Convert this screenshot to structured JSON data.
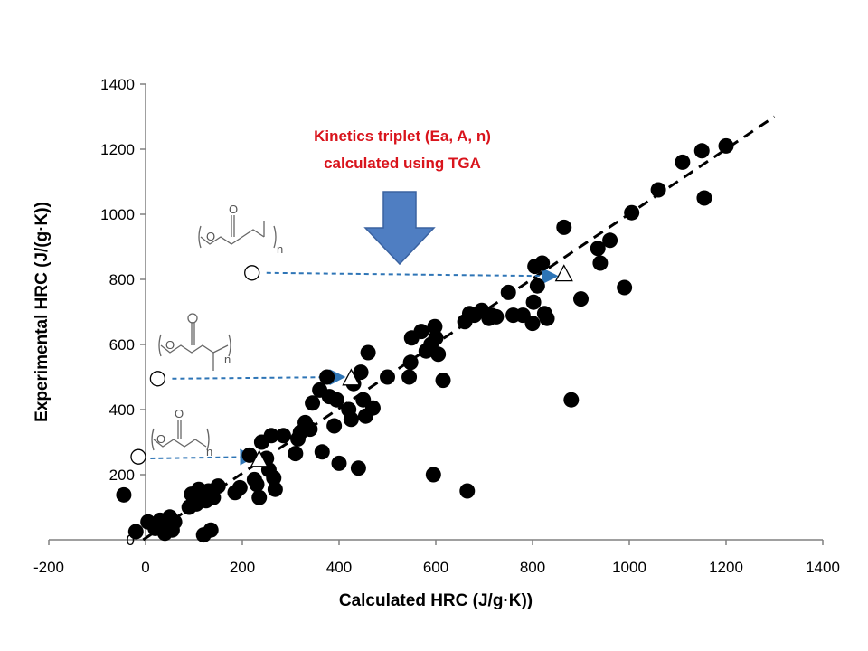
{
  "chart_data": {
    "type": "scatter",
    "title": "",
    "xlabel": "Calculated HRC (J/g·K))",
    "ylabel": "Experimental HRC (J/(g·K))",
    "xlim": [
      -200,
      1400
    ],
    "ylim": [
      0,
      1400
    ],
    "xticks": [
      -200,
      0,
      200,
      400,
      600,
      800,
      1000,
      1200,
      1400
    ],
    "yticks": [
      0,
      200,
      400,
      600,
      800,
      1000,
      1200,
      1400
    ],
    "grid": false,
    "annotation": [
      "Kinetics triplet (Ea, A, n)",
      "calculated using TGA"
    ],
    "trendline": {
      "style": "dashed",
      "x": [
        -5,
        1300
      ],
      "y": [
        0,
        1300
      ]
    },
    "series": [
      {
        "marker": "filled-circle",
        "color": "#000000",
        "points": [
          [
            -45,
            138
          ],
          [
            -20,
            25
          ],
          [
            5,
            55
          ],
          [
            20,
            35
          ],
          [
            30,
            60
          ],
          [
            40,
            20
          ],
          [
            45,
            40
          ],
          [
            50,
            70
          ],
          [
            55,
            30
          ],
          [
            60,
            55
          ],
          [
            90,
            100
          ],
          [
            95,
            140
          ],
          [
            105,
            110
          ],
          [
            110,
            155
          ],
          [
            115,
            130
          ],
          [
            120,
            15
          ],
          [
            125,
            120
          ],
          [
            130,
            150
          ],
          [
            135,
            30
          ],
          [
            140,
            130
          ],
          [
            150,
            165
          ],
          [
            185,
            145
          ],
          [
            195,
            160
          ],
          [
            215,
            260
          ],
          [
            225,
            185
          ],
          [
            230,
            170
          ],
          [
            235,
            130
          ],
          [
            240,
            300
          ],
          [
            250,
            250
          ],
          [
            255,
            215
          ],
          [
            260,
            320
          ],
          [
            265,
            190
          ],
          [
            268,
            155
          ],
          [
            285,
            320
          ],
          [
            310,
            265
          ],
          [
            315,
            310
          ],
          [
            320,
            330
          ],
          [
            330,
            360
          ],
          [
            340,
            340
          ],
          [
            345,
            420
          ],
          [
            360,
            460
          ],
          [
            365,
            270
          ],
          [
            375,
            500
          ],
          [
            380,
            440
          ],
          [
            390,
            350
          ],
          [
            395,
            430
          ],
          [
            400,
            235
          ],
          [
            420,
            400
          ],
          [
            425,
            370
          ],
          [
            430,
            480
          ],
          [
            440,
            220
          ],
          [
            445,
            515
          ],
          [
            450,
            430
          ],
          [
            455,
            380
          ],
          [
            460,
            575
          ],
          [
            470,
            405
          ],
          [
            500,
            500
          ],
          [
            545,
            500
          ],
          [
            548,
            545
          ],
          [
            550,
            620
          ],
          [
            570,
            640
          ],
          [
            580,
            580
          ],
          [
            590,
            600
          ],
          [
            595,
            200
          ],
          [
            598,
            655
          ],
          [
            600,
            620
          ],
          [
            605,
            570
          ],
          [
            615,
            490
          ],
          [
            660,
            670
          ],
          [
            665,
            150
          ],
          [
            670,
            695
          ],
          [
            680,
            690
          ],
          [
            695,
            705
          ],
          [
            710,
            680
          ],
          [
            715,
            690
          ],
          [
            725,
            685
          ],
          [
            750,
            760
          ],
          [
            760,
            690
          ],
          [
            780,
            690
          ],
          [
            800,
            665
          ],
          [
            802,
            730
          ],
          [
            805,
            840
          ],
          [
            810,
            780
          ],
          [
            820,
            850
          ],
          [
            825,
            695
          ],
          [
            830,
            680
          ],
          [
            865,
            960
          ],
          [
            880,
            430
          ],
          [
            900,
            740
          ],
          [
            935,
            895
          ],
          [
            940,
            850
          ],
          [
            960,
            920
          ],
          [
            990,
            775
          ],
          [
            1005,
            1005
          ],
          [
            1060,
            1075
          ],
          [
            1110,
            1160
          ],
          [
            1150,
            1195
          ],
          [
            1155,
            1050
          ],
          [
            1200,
            1210
          ]
        ]
      },
      {
        "marker": "open-circle",
        "color": "#000000",
        "points": [
          [
            -15,
            255
          ],
          [
            25,
            495
          ],
          [
            220,
            820
          ]
        ]
      },
      {
        "marker": "open-triangle",
        "color": "#000000",
        "points": [
          [
            235,
            245
          ],
          [
            425,
            495
          ],
          [
            865,
            815
          ]
        ]
      }
    ],
    "arrows": [
      {
        "from": [
          10,
          250
        ],
        "to": [
          225,
          255
        ]
      },
      {
        "from": [
          55,
          495
        ],
        "to": [
          410,
          500
        ]
      },
      {
        "from": [
          250,
          820
        ],
        "to": [
          850,
          810
        ]
      }
    ]
  }
}
